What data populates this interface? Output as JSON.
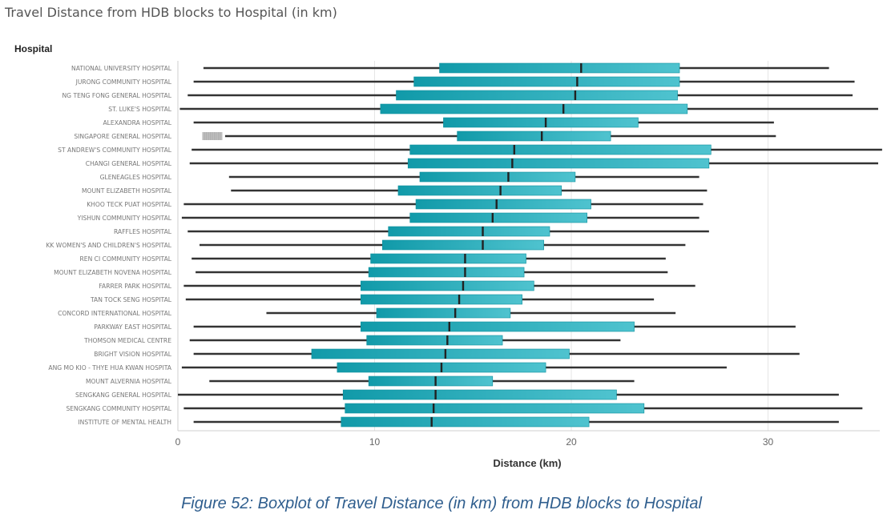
{
  "page_title": "Travel Distance from HDB blocks to Hospital (in km)",
  "caption": "Figure 52: Boxplot of Travel Distance (in km) from HDB blocks to Hospital",
  "colors": {
    "box": "#1aa4b4",
    "whisker": "#333333",
    "grid": "#e6e6e6"
  },
  "chart_data": {
    "type": "boxplot",
    "orientation": "horizontal",
    "ylabel": "Hospital",
    "xlabel": "Distance (km)",
    "xlim": [
      0,
      35.5
    ],
    "xticks": [
      0,
      10,
      20,
      30
    ],
    "grid": true,
    "categories": [
      "NATIONAL UNIVERSITY HOSPITAL",
      "JURONG COMMUNITY HOSPITAL",
      "NG TENG FONG GENERAL HOSPITAL",
      "ST. LUKE'S HOSPITAL",
      "ALEXANDRA HOSPITAL",
      "SINGAPORE GENERAL HOSPITAL",
      "ST ANDREW'S COMMUNITY HOSPITAL",
      "CHANGI GENERAL HOSPITAL",
      "GLENEAGLES HOSPITAL",
      "MOUNT ELIZABETH HOSPITAL",
      "KHOO TECK PUAT HOSPITAL",
      "YISHUN COMMUNITY HOSPITAL",
      "RAFFLES HOSPITAL",
      "KK WOMEN'S AND CHILDREN'S HOSPITAL",
      "REN CI COMMUNITY HOSPITAL",
      "MOUNT ELIZABETH NOVENA HOSPITAL",
      "FARRER PARK HOSPITAL",
      "TAN TOCK SENG HOSPITAL",
      "CONCORD INTERNATIONAL HOSPITAL",
      "PARKWAY EAST HOSPITAL",
      "THOMSON MEDICAL CENTRE",
      "BRIGHT VISION HOSPITAL",
      "ANG MO KIO - THYE HUA KWAN HOSPITA",
      "MOUNT ALVERNIA HOSPITAL",
      "SENGKANG GENERAL HOSPITAL",
      "SENGKANG COMMUNITY HOSPITAL",
      "INSTITUTE OF MENTAL HEALTH"
    ],
    "whisker_low": [
      1.3,
      0.8,
      0.5,
      0.1,
      0.8,
      2.4,
      0.7,
      0.6,
      2.6,
      2.7,
      0.3,
      0.2,
      0.5,
      1.1,
      0.7,
      0.9,
      0.3,
      0.4,
      4.5,
      0.8,
      0.6,
      0.8,
      0.2,
      1.6,
      0.0,
      0.3,
      0.8
    ],
    "q1": [
      13.3,
      12.0,
      11.1,
      10.3,
      13.5,
      14.2,
      11.8,
      11.7,
      12.3,
      11.2,
      12.1,
      11.8,
      10.7,
      10.4,
      9.8,
      9.7,
      9.3,
      9.3,
      10.1,
      9.3,
      9.6,
      6.8,
      8.1,
      9.7,
      8.4,
      8.5,
      8.3
    ],
    "median": [
      20.5,
      20.3,
      20.2,
      19.6,
      18.7,
      18.5,
      17.1,
      17.0,
      16.8,
      16.4,
      16.2,
      16.0,
      15.5,
      15.5,
      14.6,
      14.6,
      14.5,
      14.3,
      14.1,
      13.8,
      13.7,
      13.6,
      13.4,
      13.1,
      13.1,
      13.0,
      12.9
    ],
    "q3": [
      25.5,
      25.5,
      25.4,
      25.9,
      23.4,
      22.0,
      27.1,
      27.0,
      20.2,
      19.5,
      21.0,
      20.8,
      18.9,
      18.6,
      17.7,
      17.6,
      18.1,
      17.5,
      16.9,
      23.2,
      16.5,
      19.9,
      18.7,
      16.0,
      22.3,
      23.7,
      20.9
    ],
    "whisker_high": [
      33.1,
      34.4,
      34.3,
      35.6,
      30.3,
      30.4,
      35.8,
      35.6,
      26.5,
      26.9,
      26.7,
      26.5,
      27.0,
      25.8,
      24.8,
      24.9,
      26.3,
      24.2,
      25.3,
      31.4,
      22.5,
      31.6,
      27.9,
      23.2,
      33.6,
      34.8,
      33.6
    ],
    "outliers": [
      {
        "category": "SINGAPORE GENERAL HOSPITAL",
        "x": [
          1.3,
          1.4,
          1.5,
          1.6,
          1.7,
          1.8,
          1.9,
          2.0,
          2.1,
          2.2
        ]
      }
    ]
  }
}
